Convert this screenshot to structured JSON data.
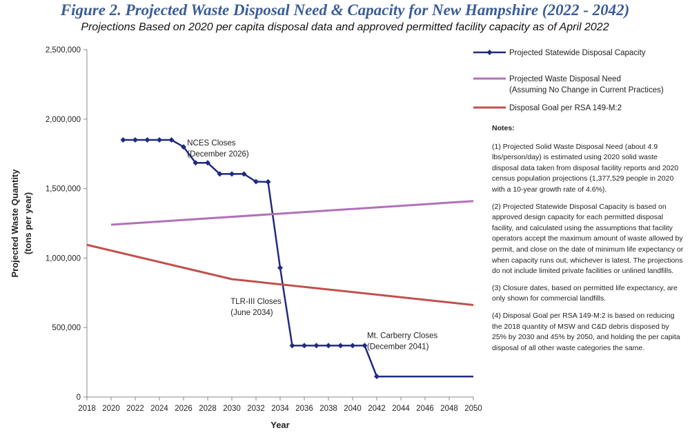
{
  "figure": {
    "title": "Figure 2. Projected Waste Disposal Need & Capacity for New Hampshire (2022 - 2042)",
    "subtitle": "Projections Based on 2020 per capita disposal data and approved permitted facility capacity as of April 2022"
  },
  "chart_data": {
    "type": "line",
    "xlabel": "Year",
    "ylabel": "Projected Waste Quantity (tons per year)",
    "xlim": [
      2018,
      2050
    ],
    "ylim": [
      0,
      2500000
    ],
    "x_ticks": [
      "2018",
      "2020",
      "2022",
      "2024",
      "2026",
      "2028",
      "2030",
      "2032",
      "2034",
      "2036",
      "2038",
      "2040",
      "2042",
      "2044",
      "2046",
      "2048",
      "2050"
    ],
    "y_ticks": [
      "0",
      "500,000",
      "1,000,000",
      "1,500,000",
      "2,000,000",
      "2,500,000"
    ],
    "grid": false,
    "legend_position": "right",
    "series": [
      {
        "name": "Projected Statewide Disposal Capacity",
        "color": "#1f2a80",
        "marker": "diamond",
        "points": [
          [
            2021,
            1850000
          ],
          [
            2022,
            1850000
          ],
          [
            2023,
            1850000
          ],
          [
            2024,
            1850000
          ],
          [
            2025,
            1850000
          ],
          [
            2026,
            1800000
          ],
          [
            2027,
            1685000
          ],
          [
            2028,
            1685000
          ],
          [
            2029,
            1605000
          ],
          [
            2030,
            1605000
          ],
          [
            2031,
            1605000
          ],
          [
            2032,
            1550000
          ],
          [
            2033,
            1548000
          ],
          [
            2034,
            930000
          ],
          [
            2035,
            370000
          ],
          [
            2036,
            370000
          ],
          [
            2037,
            370000
          ],
          [
            2038,
            370000
          ],
          [
            2039,
            370000
          ],
          [
            2040,
            370000
          ],
          [
            2041,
            370000
          ],
          [
            2042,
            148000
          ],
          [
            2050,
            148000
          ]
        ],
        "marker_through": 2042
      },
      {
        "name": "Projected Waste Disposal Need",
        "name_line2": "(Assuming No Change in Current Practices)",
        "color": "#b270b8",
        "marker": "none",
        "points": [
          [
            2020,
            1240000
          ],
          [
            2050,
            1410000
          ]
        ]
      },
      {
        "name": "Disposal Goal per RSA 149-M:2",
        "color": "#c0504d",
        "marker": "none",
        "points": [
          [
            2018,
            1095000
          ],
          [
            2030,
            848000
          ],
          [
            2050,
            662000
          ]
        ]
      }
    ],
    "annotations": [
      {
        "lines": [
          "NCES Closes",
          "(December 2026)"
        ],
        "x": 2026.3,
        "y": 1810000
      },
      {
        "lines": [
          "TLR-III Closes",
          "(June 2034)"
        ],
        "x": 2029.9,
        "y": 670000
      },
      {
        "lines": [
          "Mt. Carberry Closes",
          "(December 2041)"
        ],
        "x": 2041.2,
        "y": 425000
      }
    ]
  },
  "notes": {
    "heading": "Notes:",
    "items": [
      {
        "num": "(1)",
        "text": "Projected Solid Waste Disposal Need (about 4.9 lbs/person/day) is estimated using 2020 solid waste disposal data taken from disposal facility reports and 2020 census population projections (1,377,529 people in 2020 with a 10-year growth rate of 4.6%)."
      },
      {
        "num": "(2)",
        "text": "Projected Statewide Disposal Capacity is based on approved design capacity for each permitted disposal facility, and calculated using the assumptions that facility operators accept the maximum amount of waste allowed by permit, and close on the date of minimum life expectancy or when capacity runs out, whichever is latest. The projections do not include limited private facilities or unlined landfills."
      },
      {
        "num": "(3)",
        "text": "Closure dates, based on permitted life expectancy, are only shown for commercial landfills."
      },
      {
        "num": "(4)",
        "text": "Disposal Goal per RSA 149-M:2 is based on reducing the 2018 quantity of MSW and C&D debris disposed by 25% by 2030 and 45% by 2050, and holding the per capita disposal of all other waste categories the same."
      }
    ]
  }
}
